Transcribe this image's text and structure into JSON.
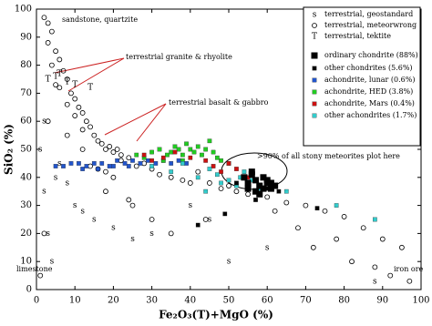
{
  "chart_data": {
    "type": "scatter",
    "x_label": "Fe₂O₃(T)+MgO  (%)",
    "y_label": "SiO₂  (%)",
    "xlim": [
      0,
      100
    ],
    "ylim": [
      0,
      100
    ],
    "xticks": [
      0,
      10,
      20,
      30,
      40,
      50,
      60,
      70,
      80,
      90,
      100
    ],
    "yticks": [
      0,
      10,
      20,
      30,
      40,
      50,
      60,
      70,
      80,
      90,
      100
    ],
    "grid": false,
    "legend": "upper right",
    "annotations": [
      "sandstone, quartzite",
      "terrestrial granite & rhyolite",
      "terrestrial basalt & gabbro",
      ">90% of all stony meteorites plot here",
      "limestone",
      "iron ore"
    ],
    "series": [
      {
        "name": "terrestrial, geostandard",
        "marker": "s",
        "color": "#333333",
        "x": [
          1,
          2,
          3,
          4,
          6,
          8,
          10,
          12,
          15,
          20,
          25,
          30,
          40,
          45,
          50,
          60,
          2,
          5,
          88
        ],
        "y": [
          50,
          35,
          20,
          10,
          45,
          38,
          30,
          28,
          25,
          22,
          18,
          20,
          30,
          25,
          10,
          15,
          60,
          40,
          3
        ]
      },
      {
        "name": "terrestrial, meteorwrong",
        "marker": "circle",
        "color": "#000000",
        "x": [
          2,
          3,
          4,
          3,
          5,
          6,
          4,
          7,
          8,
          5,
          9,
          10,
          6,
          11,
          12,
          8,
          13,
          14,
          10,
          15,
          16,
          12,
          17,
          18,
          19,
          20,
          21,
          22,
          14,
          16,
          18,
          20,
          22,
          24,
          26,
          28,
          30,
          32,
          35,
          38,
          40,
          42,
          45,
          48,
          50,
          52,
          55,
          60,
          65,
          70,
          75,
          80,
          85,
          90,
          95,
          3,
          8,
          12,
          25,
          30,
          35,
          62,
          68,
          72,
          78,
          82,
          88,
          92,
          97,
          1,
          2,
          18,
          24,
          44
        ],
        "y": [
          97,
          95,
          92,
          88,
          85,
          82,
          80,
          78,
          75,
          73,
          70,
          68,
          72,
          65,
          63,
          66,
          60,
          58,
          62,
          55,
          53,
          57,
          52,
          50,
          51,
          49,
          50,
          48,
          44,
          43,
          42,
          40,
          46,
          47,
          44,
          45,
          43,
          41,
          40,
          39,
          38,
          42,
          38,
          36,
          37,
          35,
          34,
          33,
          31,
          30,
          28,
          26,
          22,
          18,
          15,
          60,
          55,
          50,
          30,
          25,
          20,
          28,
          22,
          15,
          18,
          10,
          8,
          5,
          3,
          5,
          20,
          35,
          32,
          25
        ]
      },
      {
        "name": "terrestrial, tektite",
        "marker": "T",
        "color": "#333333",
        "x": [
          5,
          8,
          3,
          10,
          14,
          6
        ],
        "y": [
          76,
          74,
          75,
          73,
          72,
          77
        ]
      },
      {
        "name": "ordinary chondrite (88%)",
        "marker": "big-square",
        "color": "#000000",
        "x": [
          54,
          55,
          56,
          57,
          58,
          59,
          60,
          61,
          62,
          55,
          57,
          59,
          61,
          56,
          58,
          60
        ],
        "y": [
          40,
          38,
          41,
          39,
          37,
          40,
          38,
          36,
          37,
          36,
          35,
          36,
          38,
          42,
          34,
          39
        ]
      },
      {
        "name": "other chondrites (5.6%)",
        "marker": "square",
        "color": "#000000",
        "x": [
          42,
          49,
          57,
          73,
          60,
          63,
          52
        ],
        "y": [
          23,
          27,
          32,
          29,
          36,
          35,
          38
        ]
      },
      {
        "name": "achondrite, lunar (0.6%)",
        "marker": "square",
        "color": "#2255cc",
        "x": [
          5,
          7,
          9,
          11,
          13,
          15,
          17,
          19,
          21,
          23,
          25,
          27,
          29,
          31,
          33,
          35,
          37,
          39,
          12,
          16,
          20,
          24
        ],
        "y": [
          44,
          44,
          45,
          45,
          44,
          45,
          45,
          44,
          46,
          45,
          46,
          45,
          46,
          45,
          46,
          45,
          46,
          45,
          43,
          43,
          44,
          44
        ]
      },
      {
        "name": "achondrite, HED (3.8%)",
        "marker": "square",
        "color": "#22cc22",
        "x": [
          26,
          28,
          30,
          32,
          34,
          35,
          36,
          37,
          38,
          39,
          40,
          41,
          42,
          43,
          44,
          45,
          46,
          47,
          48,
          50,
          33,
          38
        ],
        "y": [
          48,
          47,
          49,
          50,
          48,
          49,
          51,
          50,
          48,
          52,
          50,
          49,
          51,
          48,
          50,
          53,
          49,
          47,
          46,
          45,
          46,
          46
        ]
      },
      {
        "name": "achondrite, Mars (0.4%)",
        "marker": "square",
        "color": "#cc1111",
        "x": [
          28,
          30,
          33,
          36,
          40,
          44,
          46,
          48,
          50,
          52,
          55,
          60
        ],
        "y": [
          48,
          46,
          47,
          49,
          47,
          46,
          44,
          42,
          45,
          43,
          40,
          38
        ]
      },
      {
        "name": "other achondrites (1.7%)",
        "marker": "square",
        "color": "#33cccc",
        "x": [
          30,
          35,
          38,
          42,
          45,
          47,
          48,
          50,
          52,
          53,
          54,
          56,
          58,
          78,
          88,
          65,
          44
        ],
        "y": [
          44,
          42,
          45,
          40,
          43,
          41,
          38,
          39,
          37,
          40,
          42,
          39,
          36,
          30,
          25,
          35,
          35
        ]
      }
    ]
  }
}
